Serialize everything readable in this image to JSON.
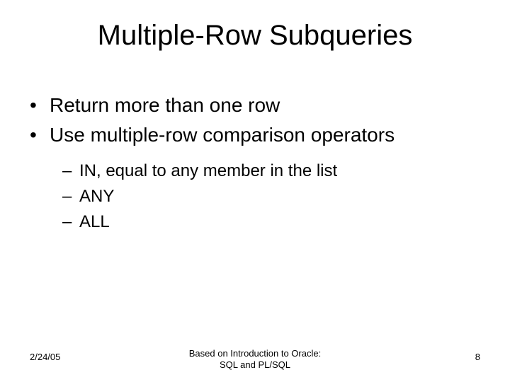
{
  "title": "Multiple-Row Subqueries",
  "bullets": [
    {
      "text": "Return more than one row"
    },
    {
      "text": "Use multiple-row comparison operators"
    }
  ],
  "sub_bullets": [
    {
      "text": "IN, equal to any member in the list"
    },
    {
      "text": "ANY"
    },
    {
      "text": "ALL"
    }
  ],
  "footer": {
    "date": "2/24/05",
    "center_line1": "Based on Introduction to Oracle:",
    "center_line2": "SQL and PL/SQL",
    "page": "8"
  },
  "colors": {
    "background": "#ffffff",
    "text": "#000000"
  },
  "typography": {
    "title_fontsize": 40,
    "bullet_l1_fontsize": 28,
    "bullet_l2_fontsize": 24,
    "footer_fontsize": 13,
    "font_family": "Arial"
  }
}
